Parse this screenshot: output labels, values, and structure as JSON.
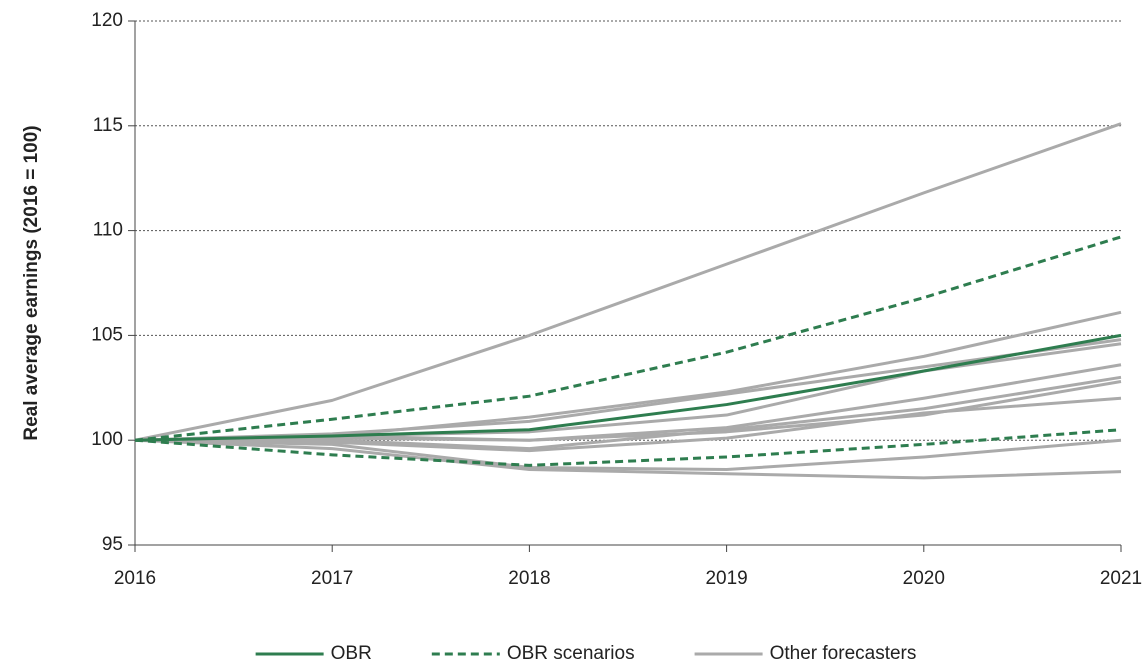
{
  "chart_data": {
    "type": "line",
    "y_label": "Real average earnings (2016 = 100)",
    "x": [
      2016,
      2017,
      2018,
      2019,
      2020,
      2021
    ],
    "xlim": [
      2016,
      2021
    ],
    "xticks": [
      2016,
      2017,
      2018,
      2019,
      2020,
      2021
    ],
    "ylim": [
      95,
      120
    ],
    "yticks": [
      95,
      100,
      105,
      110,
      115,
      120
    ],
    "grid": true,
    "legend": "bottom",
    "series": [
      {
        "name": "Other forecasters",
        "color": "#aaaaaa",
        "values": [
          100,
          101.9,
          105.0,
          108.4,
          111.8,
          115.1
        ]
      },
      {
        "color": "#aaaaaa",
        "values": [
          100,
          100.2,
          101.1,
          102.3,
          104.0,
          106.1
        ]
      },
      {
        "color": "#aaaaaa",
        "values": [
          100,
          100.3,
          100.9,
          102.2,
          103.5,
          104.8
        ]
      },
      {
        "color": "#aaaaaa",
        "values": [
          100,
          100.2,
          100.4,
          101.2,
          103.3,
          104.6
        ]
      },
      {
        "color": "#aaaaaa",
        "values": [
          100,
          100.1,
          100.0,
          100.6,
          102.0,
          103.6
        ]
      },
      {
        "color": "#aaaaaa",
        "values": [
          100,
          100.0,
          99.6,
          100.5,
          101.5,
          103.0
        ]
      },
      {
        "color": "#aaaaaa",
        "values": [
          100,
          100.2,
          100.0,
          100.4,
          101.2,
          102.8
        ]
      },
      {
        "color": "#aaaaaa",
        "values": [
          100,
          99.9,
          99.5,
          100.1,
          101.3,
          102.0
        ]
      },
      {
        "color": "#aaaaaa",
        "values": [
          100,
          99.8,
          98.7,
          98.6,
          99.2,
          100.0
        ]
      },
      {
        "color": "#aaaaaa",
        "values": [
          100,
          99.6,
          98.6,
          98.4,
          98.2,
          98.5
        ]
      },
      {
        "name": "OBR scenarios",
        "color": "#2e7d4f",
        "dashed": true,
        "values": [
          100,
          101.0,
          102.1,
          104.2,
          106.8,
          109.7
        ]
      },
      {
        "color": "#2e7d4f",
        "dashed": true,
        "values": [
          100,
          99.3,
          98.8,
          99.2,
          99.8,
          100.5
        ]
      },
      {
        "name": "OBR",
        "color": "#2e7d4f",
        "values": [
          100,
          100.2,
          100.5,
          101.7,
          103.3,
          105.0
        ]
      }
    ],
    "legend_order": [
      12,
      10,
      0
    ]
  }
}
